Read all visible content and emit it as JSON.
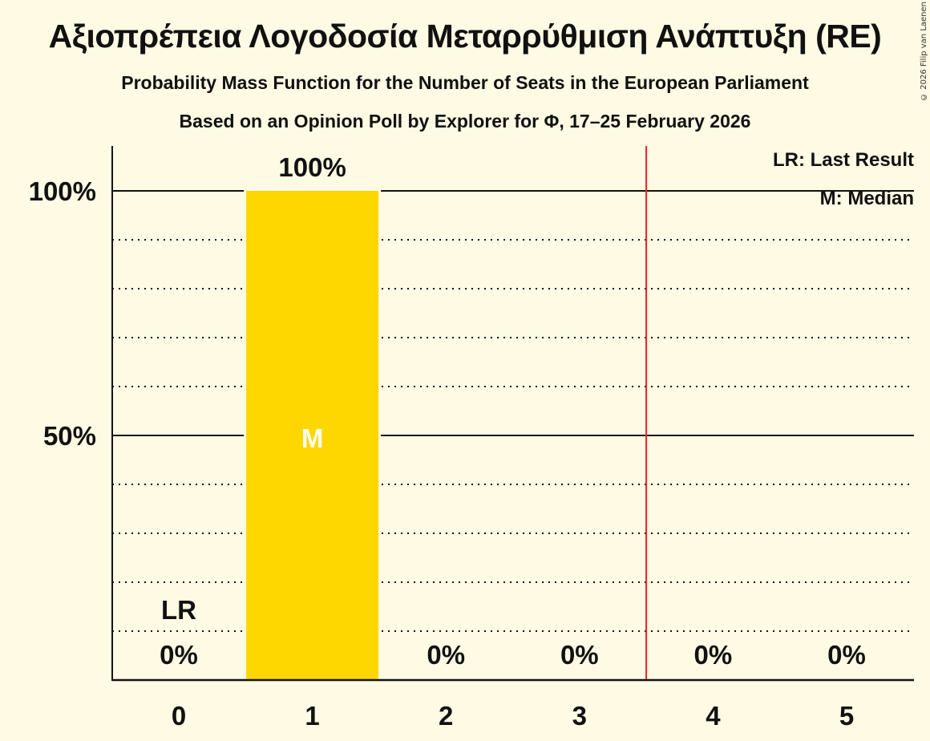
{
  "header": {
    "title": "Αξιοπρέπεια Λογοδοσία Μεταρρύθμιση Ανάπτυξη (RE)",
    "subtitle": "Probability Mass Function for the Number of Seats in the European Parliament",
    "subtitle2": "Based on an Opinion Poll by Explorer for Φ, 17–25 February 2026",
    "copyright": "© 2026 Filip van Laenen"
  },
  "legend": {
    "lr": "LR: Last Result",
    "m": "M: Median"
  },
  "colors": {
    "background": "#fffae3",
    "bar": "#ffd700",
    "threshold_line": "#e8202a",
    "text": "#111111"
  },
  "chart_data": {
    "type": "bar",
    "title": "Αξιοπρέπεια Λογοδοσία Μεταρρύθμιση Ανάπτυξη (RE)",
    "subtitle": "Probability Mass Function for the Number of Seats in the European Parliament — Based on an Opinion Poll by Explorer for Φ, 17–25 February 2026",
    "xlabel": "",
    "ylabel": "",
    "categories": [
      "0",
      "1",
      "2",
      "3",
      "4",
      "5"
    ],
    "values": [
      0,
      100,
      0,
      0,
      0,
      0
    ],
    "value_labels": [
      "0%",
      "100%",
      "0%",
      "0%",
      "0%",
      "0%"
    ],
    "ylim": [
      0,
      100
    ],
    "yticks": [
      {
        "value": 50,
        "label": "50%"
      },
      {
        "value": 100,
        "label": "100%"
      }
    ],
    "minor_gridlines": [
      10,
      20,
      30,
      40,
      60,
      70,
      80,
      90
    ],
    "annotations": [
      {
        "category": "0",
        "text": "LR",
        "meaning": "Last Result"
      },
      {
        "category": "1",
        "text": "M",
        "meaning": "Median"
      }
    ],
    "vertical_line": {
      "x": 3.5,
      "color": "#e8202a"
    },
    "legend_position": "top-right"
  }
}
